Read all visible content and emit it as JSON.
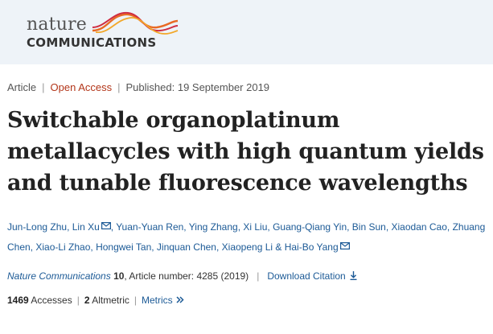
{
  "header": {
    "logo_top": "nature",
    "logo_bottom": "COMMUNICATIONS",
    "logo_colors": [
      "#e86a24",
      "#cf2d42",
      "#f2a72a"
    ]
  },
  "meta": {
    "type": "Article",
    "access": "Open Access",
    "published": "Published: 19 September 2019"
  },
  "title": "Switchable organoplatinum metallacycles with high quantum yields and tunable fluorescence wavelengths",
  "authors": [
    {
      "name": "Jun-Long Zhu",
      "sep": ", "
    },
    {
      "name": "Lin Xu",
      "mail": true,
      "sep": ", "
    },
    {
      "name": "Yuan-Yuan Ren",
      "sep": ", "
    },
    {
      "name": "Ying Zhang",
      "sep": ", "
    },
    {
      "name": "Xi Liu",
      "sep": ", "
    },
    {
      "name": "Guang-Qiang Yin",
      "sep": ", "
    },
    {
      "name": "Bin Sun",
      "sep": ", "
    },
    {
      "name": "Xiaodan Cao",
      "sep": ", "
    },
    {
      "name": "Zhuang Chen",
      "sep": ", "
    },
    {
      "name": "Xiao-Li Zhao",
      "sep": ", "
    },
    {
      "name": "Hongwei Tan",
      "sep": ", "
    },
    {
      "name": "Jinquan Chen",
      "sep": ", "
    },
    {
      "name": "Xiaopeng Li",
      "sep": " & "
    },
    {
      "name": "Hai-Bo Yang",
      "mail": true,
      "sep": ""
    }
  ],
  "citation": {
    "journal": "Nature Communications",
    "volume": "10",
    "article_number": ", Article number: 4285 (2019)",
    "download_label": "Download Citation"
  },
  "metrics": {
    "accesses_count": "1469",
    "accesses_label": "Accesses",
    "altmetric_count": "2",
    "altmetric_label": "Altmetric",
    "metrics_link": "Metrics"
  }
}
